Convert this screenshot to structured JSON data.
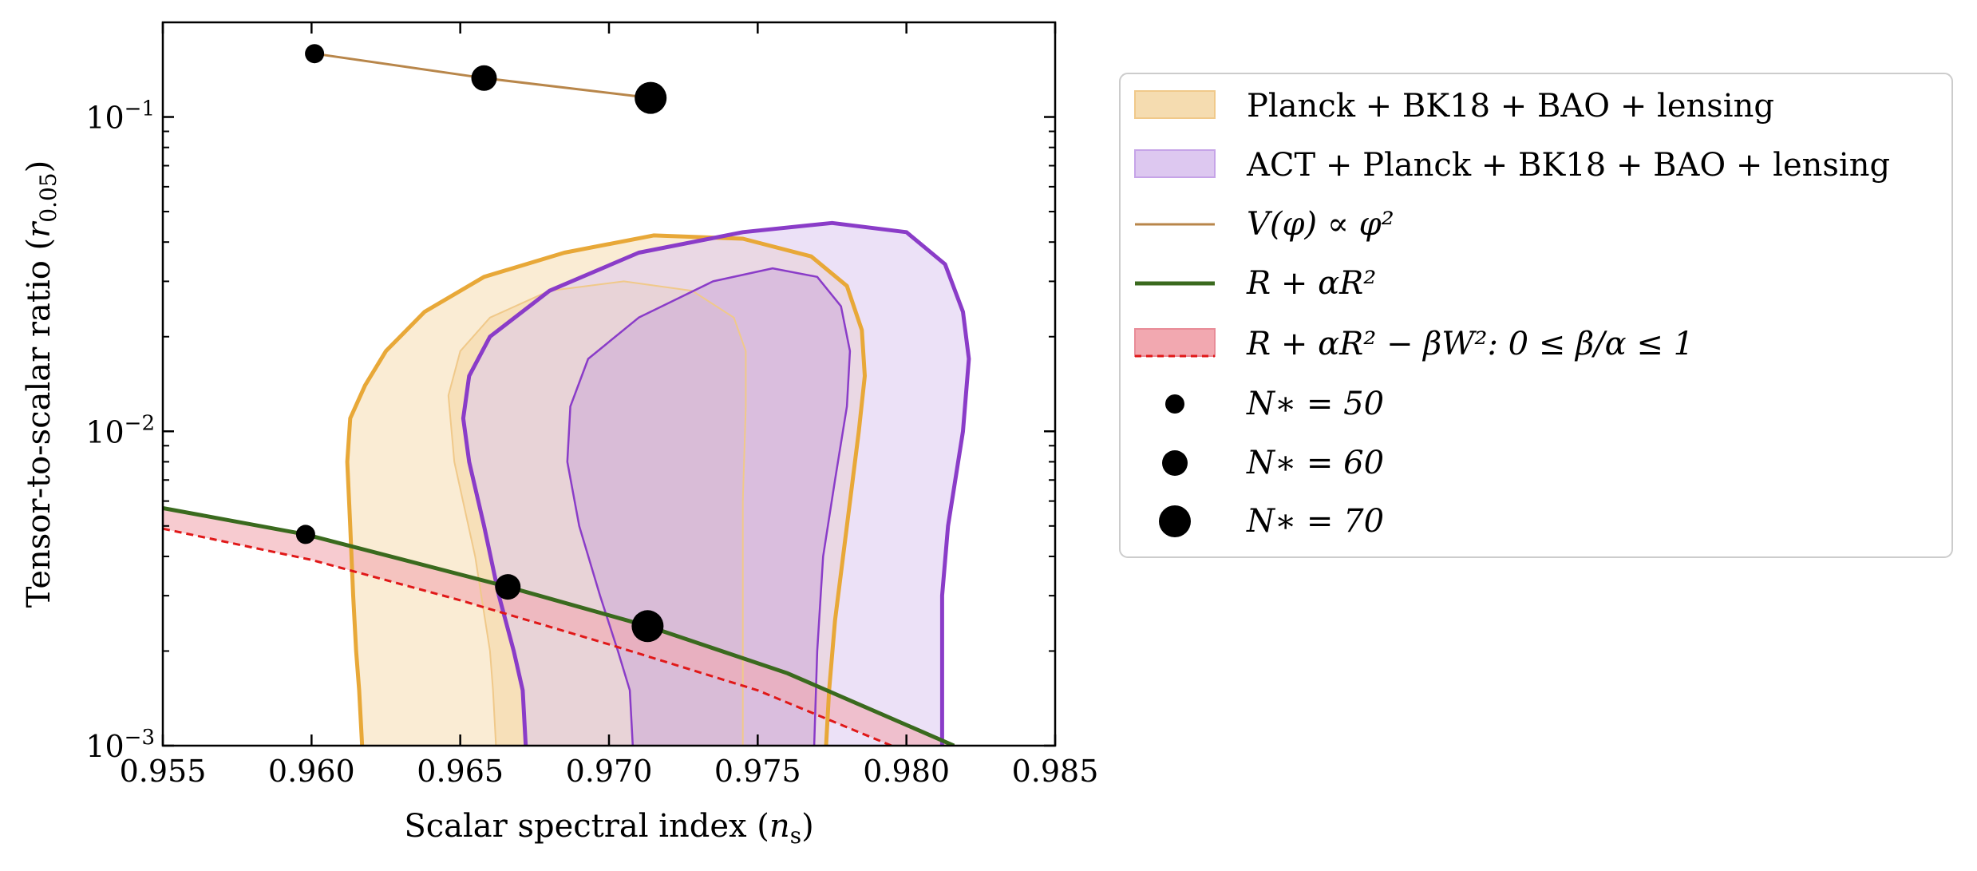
{
  "chart_data": {
    "type": "scatter",
    "x_scale": "linear",
    "y_scale": "log",
    "xlim": [
      0.955,
      0.985
    ],
    "ylim": [
      0.001,
      0.2
    ],
    "xlabel": "Scalar spectral index (n_s)",
    "xlabel_main": "Scalar spectral index (",
    "xlabel_sym": "n",
    "xlabel_sub": "s",
    "xlabel_close": ")",
    "ylabel": "Tensor-to-scalar ratio (r_0.05)",
    "ylabel_main": "Tensor-to-scalar ratio (",
    "ylabel_sym": "r",
    "ylabel_sub": "0.05",
    "ylabel_close": ")",
    "x_ticks": [
      0.955,
      0.96,
      0.965,
      0.97,
      0.975,
      0.98,
      0.985
    ],
    "x_tick_labels": [
      "0.955",
      "0.960",
      "0.965",
      "0.970",
      "0.975",
      "0.980",
      "0.985"
    ],
    "y_ticks": [
      0.001,
      0.01,
      0.1
    ],
    "y_tick_bases": [
      "10",
      "10",
      "10"
    ],
    "y_tick_exps": [
      "−3",
      "−2",
      "−1"
    ],
    "legend_position": "outside-right",
    "colors": {
      "planck_fill": "#f5dcb0",
      "planck_edge": "#e8a838",
      "act_fill": "#ddc8f0",
      "act_edge": "#8a3cc8",
      "phi2_line": "#b8864a",
      "starobinsky_line": "#3a6a1e",
      "weyl_fill": "#f2a8b0",
      "weyl_edge": "#e01818"
    },
    "contours": [
      {
        "name": "Planck + BK18 + BAO + lensing",
        "level": "95%",
        "points": [
          [
            0.9617,
            0.001
          ],
          [
            0.9616,
            0.0015
          ],
          [
            0.9615,
            0.002
          ],
          [
            0.9614,
            0.003
          ],
          [
            0.9613,
            0.005
          ],
          [
            0.9612,
            0.008
          ],
          [
            0.9613,
            0.011
          ],
          [
            0.9618,
            0.014
          ],
          [
            0.9625,
            0.018
          ],
          [
            0.9638,
            0.024
          ],
          [
            0.9658,
            0.031
          ],
          [
            0.9685,
            0.037
          ],
          [
            0.9715,
            0.042
          ],
          [
            0.9745,
            0.041
          ],
          [
            0.9768,
            0.036
          ],
          [
            0.978,
            0.029
          ],
          [
            0.9785,
            0.021
          ],
          [
            0.9786,
            0.015
          ],
          [
            0.9784,
            0.01
          ],
          [
            0.978,
            0.005
          ],
          [
            0.9776,
            0.0025
          ],
          [
            0.9774,
            0.0015
          ],
          [
            0.9773,
            0.001
          ]
        ]
      },
      {
        "name": "Planck + BK18 + BAO + lensing",
        "level": "68%",
        "points": [
          [
            0.9662,
            0.001
          ],
          [
            0.9661,
            0.0015
          ],
          [
            0.966,
            0.002
          ],
          [
            0.9655,
            0.004
          ],
          [
            0.9648,
            0.008
          ],
          [
            0.9646,
            0.013
          ],
          [
            0.965,
            0.018
          ],
          [
            0.966,
            0.023
          ],
          [
            0.968,
            0.028
          ],
          [
            0.9705,
            0.03
          ],
          [
            0.9728,
            0.028
          ],
          [
            0.9742,
            0.023
          ],
          [
            0.9746,
            0.018
          ],
          [
            0.9746,
            0.012
          ],
          [
            0.9745,
            0.006
          ],
          [
            0.9745,
            0.003
          ],
          [
            0.9745,
            0.001
          ]
        ]
      },
      {
        "name": "ACT + Planck + BK18 + BAO + lensing",
        "level": "95%",
        "points": [
          [
            0.9672,
            0.001
          ],
          [
            0.9671,
            0.0015
          ],
          [
            0.9668,
            0.002
          ],
          [
            0.9663,
            0.003
          ],
          [
            0.9658,
            0.005
          ],
          [
            0.9653,
            0.008
          ],
          [
            0.9651,
            0.011
          ],
          [
            0.9653,
            0.015
          ],
          [
            0.966,
            0.02
          ],
          [
            0.968,
            0.028
          ],
          [
            0.971,
            0.037
          ],
          [
            0.9745,
            0.043
          ],
          [
            0.9775,
            0.046
          ],
          [
            0.98,
            0.043
          ],
          [
            0.9813,
            0.034
          ],
          [
            0.9819,
            0.024
          ],
          [
            0.9821,
            0.017
          ],
          [
            0.9819,
            0.01
          ],
          [
            0.9814,
            0.005
          ],
          [
            0.9812,
            0.003
          ],
          [
            0.9812,
            0.0015
          ],
          [
            0.9812,
            0.001
          ]
        ]
      },
      {
        "name": "ACT + Planck + BK18 + BAO + lensing",
        "level": "68%",
        "points": [
          [
            0.9708,
            0.001
          ],
          [
            0.9707,
            0.0015
          ],
          [
            0.9703,
            0.002
          ],
          [
            0.9697,
            0.003
          ],
          [
            0.969,
            0.005
          ],
          [
            0.9686,
            0.008
          ],
          [
            0.9687,
            0.012
          ],
          [
            0.9693,
            0.017
          ],
          [
            0.971,
            0.023
          ],
          [
            0.9735,
            0.03
          ],
          [
            0.9755,
            0.033
          ],
          [
            0.977,
            0.031
          ],
          [
            0.9778,
            0.025
          ],
          [
            0.9781,
            0.018
          ],
          [
            0.978,
            0.012
          ],
          [
            0.9776,
            0.007
          ],
          [
            0.9772,
            0.004
          ],
          [
            0.977,
            0.002
          ],
          [
            0.9769,
            0.001
          ]
        ]
      }
    ],
    "series": [
      {
        "name": "V(φ) ∝ φ²",
        "x": [
          0.9601,
          0.9658,
          0.9714
        ],
        "y": [
          0.159,
          0.133,
          0.115
        ]
      },
      {
        "name": "R + αR²",
        "x": [
          0.955,
          0.9598,
          0.9666,
          0.9713,
          0.976,
          0.9816
        ],
        "y": [
          0.0057,
          0.0047,
          0.0032,
          0.0024,
          0.0017,
          0.001
        ]
      },
      {
        "name": "R + αR² − βW²: 0 ≤ β/α ≤ 1",
        "x": [
          0.955,
          0.96,
          0.965,
          0.97,
          0.975,
          0.9795
        ],
        "y": [
          0.0049,
          0.0039,
          0.0029,
          0.0021,
          0.0015,
          0.001
        ]
      }
    ],
    "efold_points": [
      {
        "N": 50,
        "model": "φ²",
        "x": 0.9601,
        "y": 0.159
      },
      {
        "N": 60,
        "model": "φ²",
        "x": 0.9658,
        "y": 0.133
      },
      {
        "N": 70,
        "model": "φ²",
        "x": 0.9714,
        "y": 0.115
      },
      {
        "N": 50,
        "model": "R²",
        "x": 0.9598,
        "y": 0.0047
      },
      {
        "N": 60,
        "model": "R²",
        "x": 0.9666,
        "y": 0.0032
      },
      {
        "N": 70,
        "model": "R²",
        "x": 0.9713,
        "y": 0.0024
      }
    ],
    "legend": [
      {
        "label": "Planck + BK18 + BAO + lensing"
      },
      {
        "label": "ACT + Planck + BK18 + BAO + lensing"
      },
      {
        "label": "V(φ) ∝ φ²"
      },
      {
        "label": "R + αR²"
      },
      {
        "label": "R + αR² − βW²:  0 ≤ β/α ≤ 1"
      },
      {
        "label": "N∗ = 50"
      },
      {
        "label": "N∗ = 60"
      },
      {
        "label": "N∗ = 70"
      }
    ]
  }
}
